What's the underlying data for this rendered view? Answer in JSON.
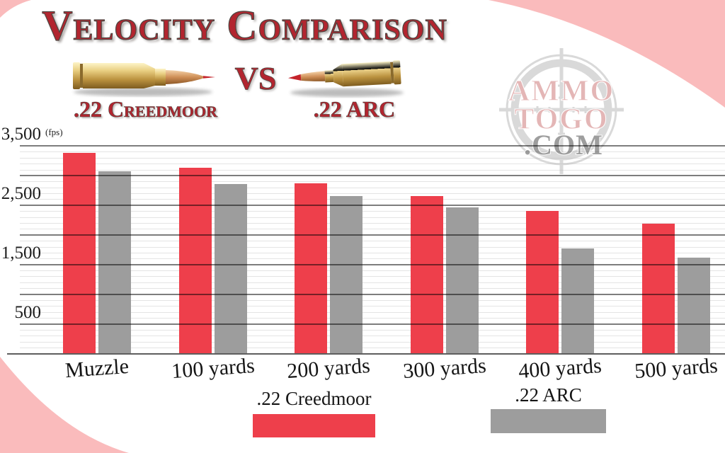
{
  "colors": {
    "creedmoor_red": "#ee3f4b",
    "arc_gray": "#9d9d9d",
    "title_red": "#b2252f",
    "corner_pink": "#fabbbc",
    "grid_major": "#7d7d7d",
    "grid_minor": "#e4e4e4",
    "axis_text": "#1c1c1c"
  },
  "header": {
    "title": "Velocity Comparison",
    "vs_label": "VS",
    "left_cartridge_label": ".22 Creedmoor",
    "right_cartridge_label": ".22 ARC"
  },
  "watermark": {
    "line1": "AMMO",
    "line2": "TOGO",
    "line3": ".COM"
  },
  "chart_data": {
    "type": "bar",
    "title": "Velocity Comparison",
    "unit": "fps",
    "categories": [
      "Muzzle",
      "100 yards",
      "200 yards",
      "300 yards",
      "400 yards",
      "500 yards"
    ],
    "series": [
      {
        "name": ".22 Creedmoor",
        "color": "#ee3f4b",
        "values": [
          3380,
          3130,
          2870,
          2650,
          2400,
          2185
        ]
      },
      {
        "name": ".22 ARC",
        "color": "#9d9d9d",
        "values": [
          3070,
          2855,
          2650,
          2460,
          1770,
          1610
        ]
      }
    ],
    "ylim": [
      0,
      3500
    ],
    "y_ticks": [
      {
        "value": 3500,
        "label": "3,500",
        "suffix": "(fps)"
      },
      {
        "value": 2500,
        "label": "2,500"
      },
      {
        "value": 1500,
        "label": "1,500"
      },
      {
        "value": 500,
        "label": "500"
      }
    ],
    "grid": {
      "major_step": 500,
      "minor_step": 100,
      "grid_on": true
    },
    "legend_position": "bottom"
  },
  "legend": {
    "items": [
      {
        "label": ".22 Creedmoor",
        "color": "#ee3f4b"
      },
      {
        "label": ".22 ARC",
        "color": "#9d9d9d"
      }
    ]
  }
}
